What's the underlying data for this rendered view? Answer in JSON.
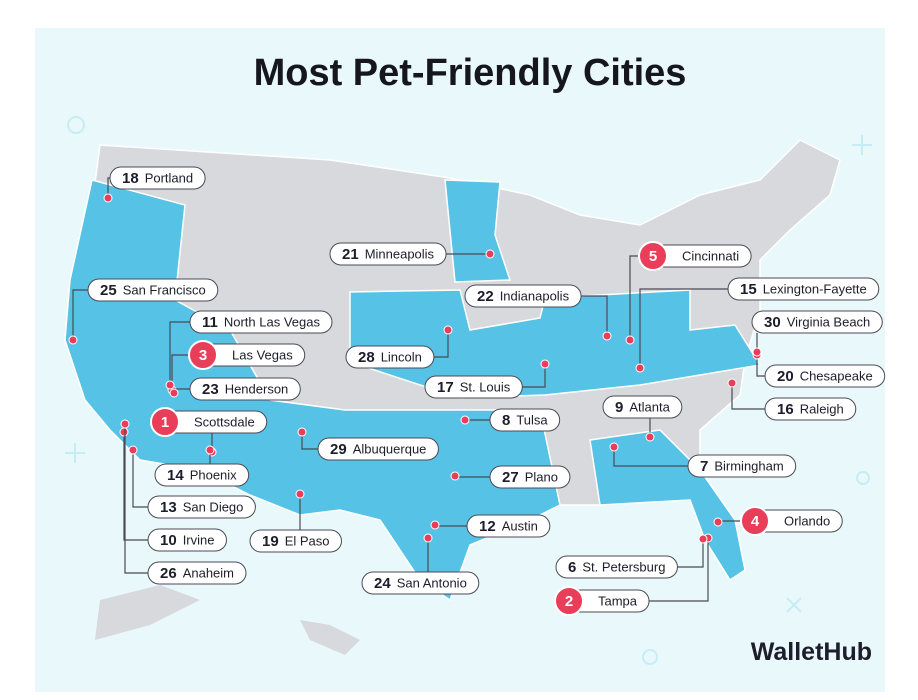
{
  "title": "Most Pet-Friendly Cities",
  "cities": [
    {
      "rank": 1,
      "name": "Scottsdale"
    },
    {
      "rank": 2,
      "name": "Tampa"
    },
    {
      "rank": 3,
      "name": "Las Vegas"
    },
    {
      "rank": 4,
      "name": "Orlando"
    },
    {
      "rank": 5,
      "name": "Cincinnati"
    },
    {
      "rank": 6,
      "name": "St. Petersburg"
    },
    {
      "rank": 7,
      "name": "Birmingham"
    },
    {
      "rank": 8,
      "name": "Tulsa"
    },
    {
      "rank": 9,
      "name": "Atlanta"
    },
    {
      "rank": 10,
      "name": "Irvine"
    },
    {
      "rank": 11,
      "name": "North Las Vegas"
    },
    {
      "rank": 12,
      "name": "Austin"
    },
    {
      "rank": 13,
      "name": "San Diego"
    },
    {
      "rank": 14,
      "name": "Phoenix"
    },
    {
      "rank": 15,
      "name": "Lexington-Fayette"
    },
    {
      "rank": 16,
      "name": "Raleigh"
    },
    {
      "rank": 17,
      "name": "St. Louis"
    },
    {
      "rank": 18,
      "name": "Portland"
    },
    {
      "rank": 19,
      "name": "El Paso"
    },
    {
      "rank": 20,
      "name": "Chesapeake"
    },
    {
      "rank": 21,
      "name": "Minneapolis"
    },
    {
      "rank": 22,
      "name": "Indianapolis"
    },
    {
      "rank": 23,
      "name": "Henderson"
    },
    {
      "rank": 24,
      "name": "San Antonio"
    },
    {
      "rank": 25,
      "name": "San Francisco"
    },
    {
      "rank": 26,
      "name": "Anaheim"
    },
    {
      "rank": 27,
      "name": "Plano"
    },
    {
      "rank": 28,
      "name": "Lincoln"
    },
    {
      "rank": 29,
      "name": "Albuquerque"
    },
    {
      "rank": 30,
      "name": "Virginia Beach"
    }
  ],
  "brand": "WalletHub"
}
